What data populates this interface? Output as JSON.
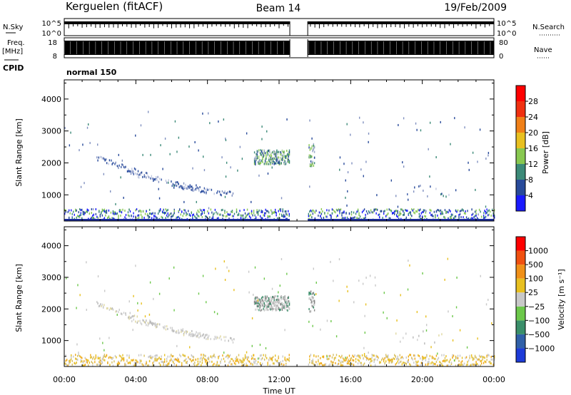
{
  "header": {
    "station": "Kerguelen (fitACF)",
    "beam": "Beam 14",
    "date": "19/Feb/2009"
  },
  "strips": {
    "nsky_label": "N.Sky",
    "nsky_ticks": [
      "10^5",
      "10^0"
    ],
    "nsearch_label": "N.Search",
    "nsearch_ticks": [
      "10^5",
      "10^0"
    ],
    "freq_label": "Freq.",
    "freq_unit": "[MHz]",
    "freq_ticks": [
      "18",
      "8"
    ],
    "nave_label": "Nave",
    "nave_ticks": [
      "80",
      "0"
    ],
    "cpid_label": "CPID",
    "cpid_value": "normal 150"
  },
  "chart_data": [
    {
      "type": "heatmap",
      "name": "power",
      "ylabel": "Slant Range [km]",
      "xlabel": "Time UT",
      "xlim_hours": [
        0,
        24
      ],
      "ylim_km": [
        180,
        4600
      ],
      "yticks": [
        1000,
        2000,
        3000,
        4000
      ],
      "colorbar": {
        "label": "Power [dB]",
        "tick_labels": [
          "4",
          "8",
          "12",
          "16",
          "20",
          "24",
          "28"
        ],
        "colors": [
          "#1a1aff",
          "#284a9a",
          "#3c8a78",
          "#88c850",
          "#e8c020",
          "#f08018",
          "#f03010",
          "#ff0000"
        ]
      },
      "data_gap_hours": [
        12.6,
        13.6
      ]
    },
    {
      "type": "heatmap",
      "name": "velocity",
      "ylabel": "Slant Range [km]",
      "xlabel": "Time UT",
      "xlim_hours": [
        0,
        24
      ],
      "ylim_km": [
        180,
        4600
      ],
      "yticks": [
        1000,
        2000,
        3000,
        4000
      ],
      "colorbar": {
        "label": "Velocity [m s⁻¹]",
        "tick_labels": [
          "1000",
          "500",
          "100",
          "25",
          "−25",
          "−100",
          "−500",
          "−1000"
        ],
        "colors": [
          "#1d3bd8",
          "#3060a8",
          "#3a8f6a",
          "#6cc84a",
          "#c8c8c8",
          "#e8c020",
          "#f09018",
          "#f05010",
          "#ff0000"
        ]
      }
    }
  ],
  "time_axis": {
    "ticks": [
      "00:00",
      "04:00",
      "08:00",
      "12:00",
      "16:00",
      "20:00",
      "00:00"
    ],
    "label": "Time UT"
  }
}
